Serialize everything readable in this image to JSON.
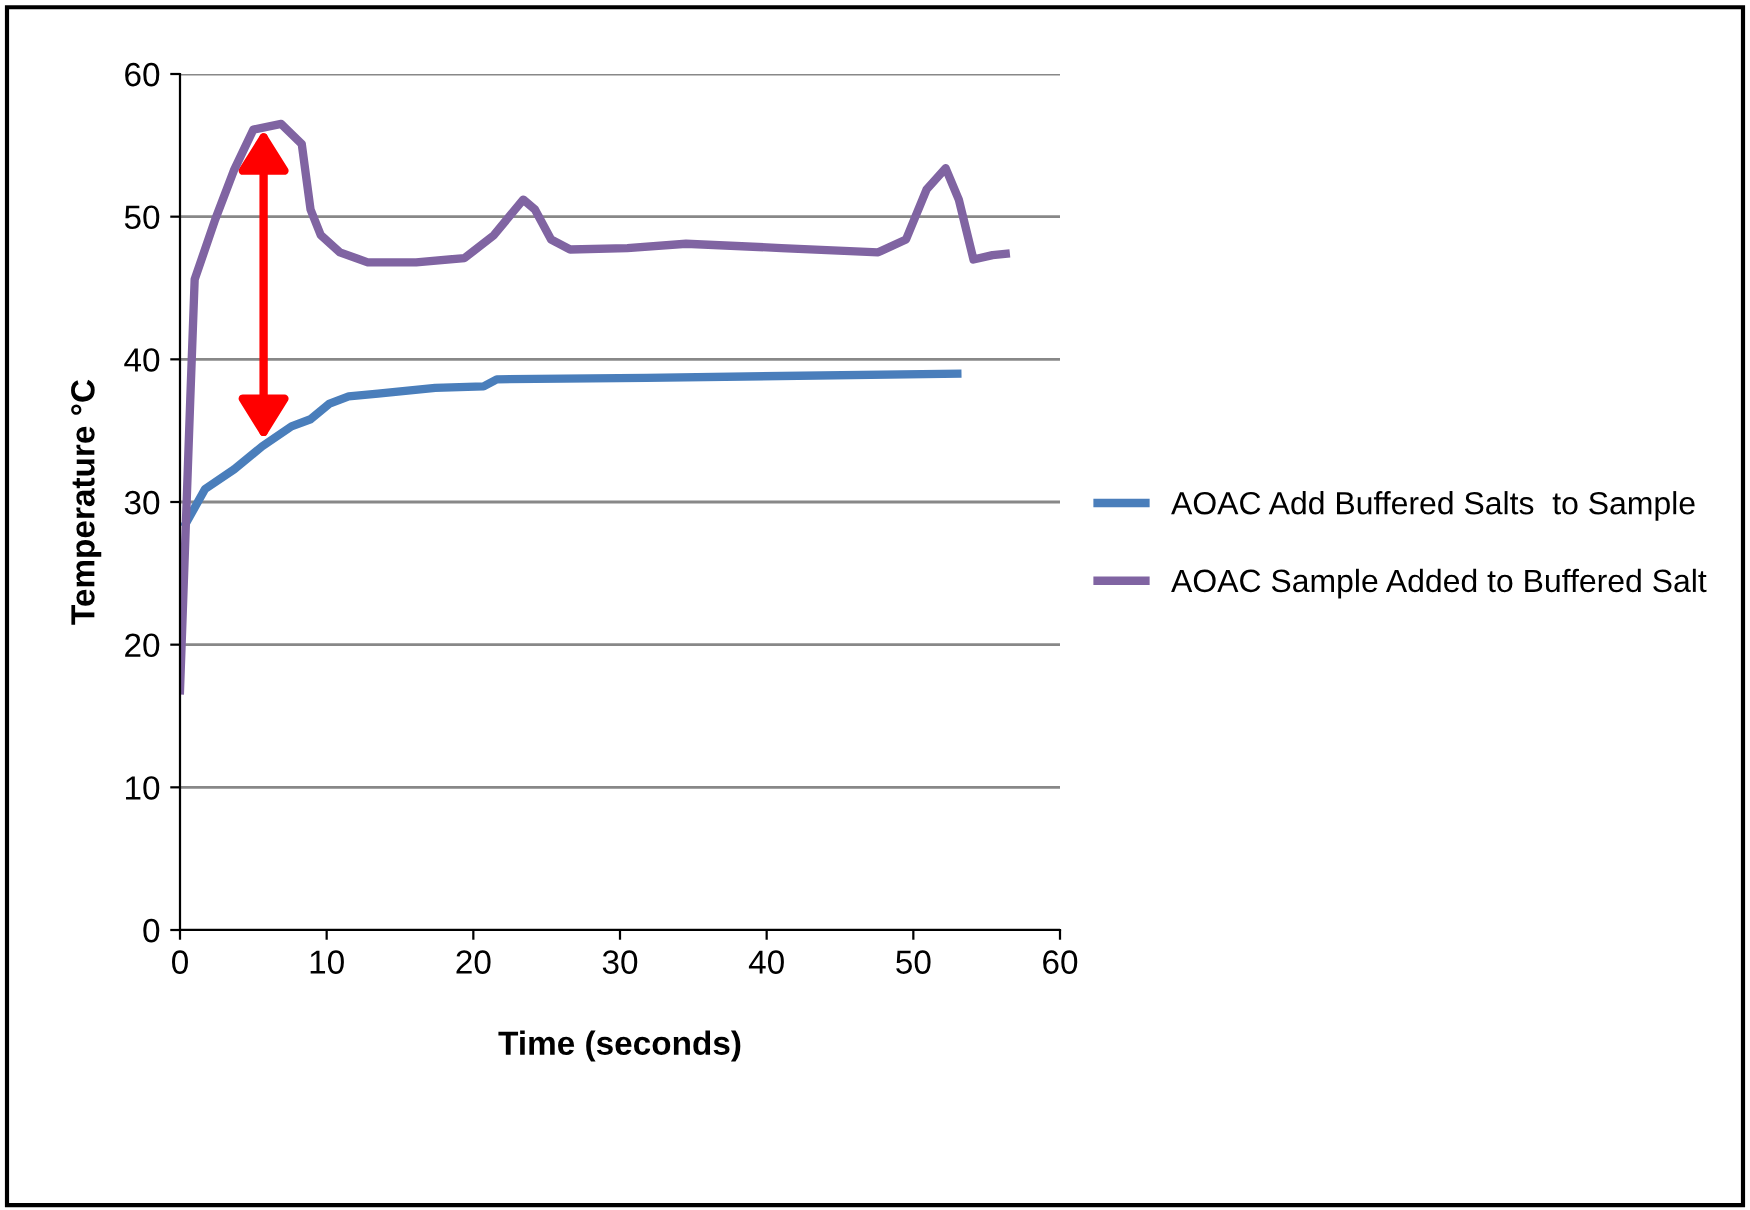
{
  "chart_data": {
    "type": "line",
    "xlabel": "Time (seconds)",
    "ylabel": "Temperature °C",
    "xlim": [
      0,
      60
    ],
    "xticks": [
      0,
      10,
      20,
      30,
      40,
      50,
      60
    ],
    "ylim": [
      0,
      60
    ],
    "yticks": [
      0,
      10,
      20,
      30,
      40,
      50,
      60
    ],
    "grid": "y",
    "legend": "right",
    "marker": "none",
    "line_style": "solid",
    "series": [
      {
        "name": "AOAC Add Buffered Salts  to Sample",
        "color": "#4a7ebb",
        "x": [
          0.4,
          1.7,
          3.7,
          5.6,
          7.6,
          8.9,
          10.2,
          11.5,
          13.5,
          17.4,
          20.7,
          21.6,
          31.8,
          53
        ],
        "values": [
          28.5,
          30.9,
          32.3,
          33.9,
          35.3,
          35.8,
          36.9,
          37.4,
          37.6,
          38.0,
          38.1,
          38.6,
          38.7,
          39.0
        ]
      },
      {
        "name": "AOAC Sample Added to Buffered Salt",
        "color": "#8064a2",
        "x": [
          0,
          0.7,
          1,
          2.4,
          3.7,
          5,
          6.9,
          8.3,
          8.9,
          9.6,
          10.9,
          12.8,
          16.1,
          19.4,
          21.4,
          23.4,
          24.2,
          25.3,
          26.6,
          30.5,
          34.5,
          41,
          47.6,
          49.5,
          50.9,
          52.2,
          53.1,
          54.1,
          55.4,
          56.3
        ],
        "values": [
          16.8,
          37.2,
          45.6,
          49.8,
          53.3,
          56.1,
          56.5,
          55.1,
          50.5,
          48.7,
          47.5,
          46.8,
          46.8,
          47.1,
          48.7,
          51.2,
          50.5,
          48.4,
          47.7,
          47.8,
          48.1,
          47.8,
          47.5,
          48.4,
          51.9,
          53.4,
          51.2,
          47.0,
          47.3,
          47.4
        ]
      }
    ]
  }
}
